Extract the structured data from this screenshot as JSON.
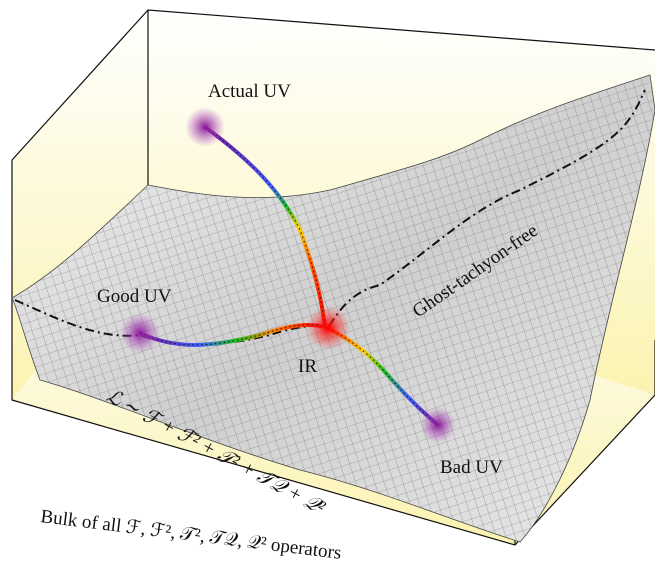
{
  "labels": {
    "actual_uv": "Actual UV",
    "good_uv": "Good UV",
    "ir": "IR",
    "bad_uv": "Bad UV",
    "ghost": "Ghost-tachyon-free",
    "lagrangian": "ℒ ∼ ℱ + ℱ² + 𝒯² + 𝒯𝒬 + 𝒬²",
    "bulk": "Bulk of all ℱ, ℱ², 𝒯², 𝒯𝒬, 𝒬² operators"
  }
}
